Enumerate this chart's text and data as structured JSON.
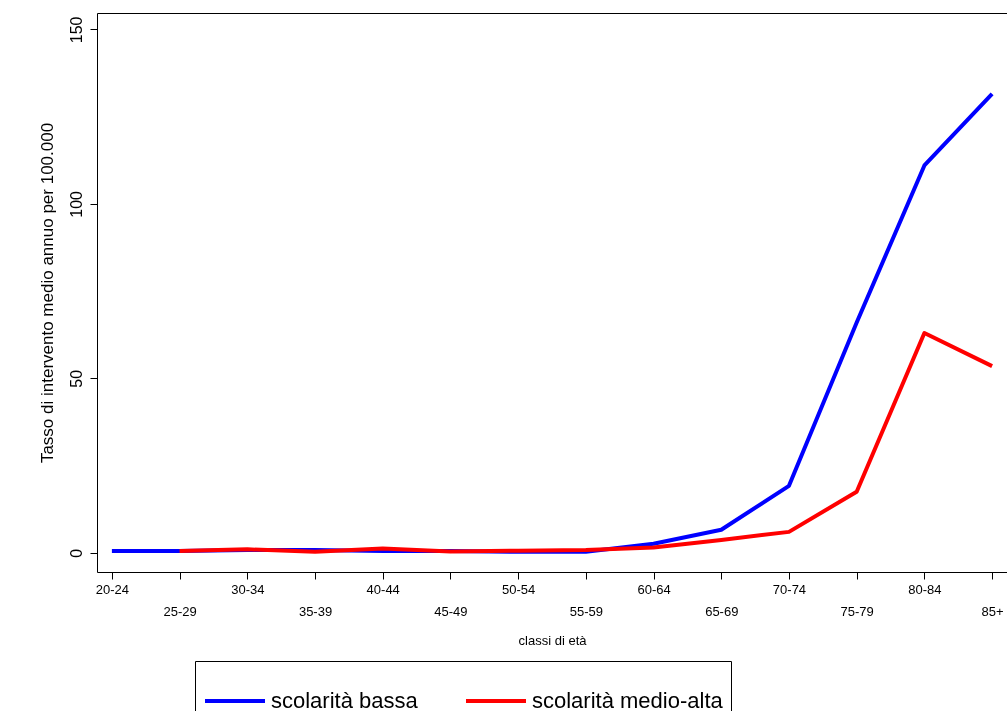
{
  "chart_data": {
    "type": "line",
    "xlabel": "classi di età",
    "ylabel": "Tasso di intervento medio annuo per 100.000",
    "categories": [
      "20-24",
      "25-29",
      "30-34",
      "35-39",
      "40-44",
      "45-49",
      "50-54",
      "55-59",
      "60-64",
      "65-69",
      "70-74",
      "75-79",
      "80-84",
      "85+"
    ],
    "series": [
      {
        "name": "scolarità bassa",
        "color": "#0000ff",
        "values": [
          0.5,
          0.5,
          0.8,
          0.8,
          0.5,
          0.5,
          0.3,
          0.3,
          2.6,
          6.6,
          19.2,
          66,
          111,
          131.5
        ]
      },
      {
        "name": "scolarità medio-alta",
        "color": "#ff0000",
        "values": [
          null,
          0.5,
          1,
          0.3,
          1.2,
          0.4,
          0.6,
          0.8,
          1.5,
          3.7,
          6,
          17.5,
          63,
          53.5
        ]
      }
    ],
    "ylim": [
      -5.5,
      154.7
    ],
    "yticks": [
      0,
      50,
      100,
      150
    ],
    "grid": false,
    "legend": "bottom",
    "line_style": "solid"
  }
}
